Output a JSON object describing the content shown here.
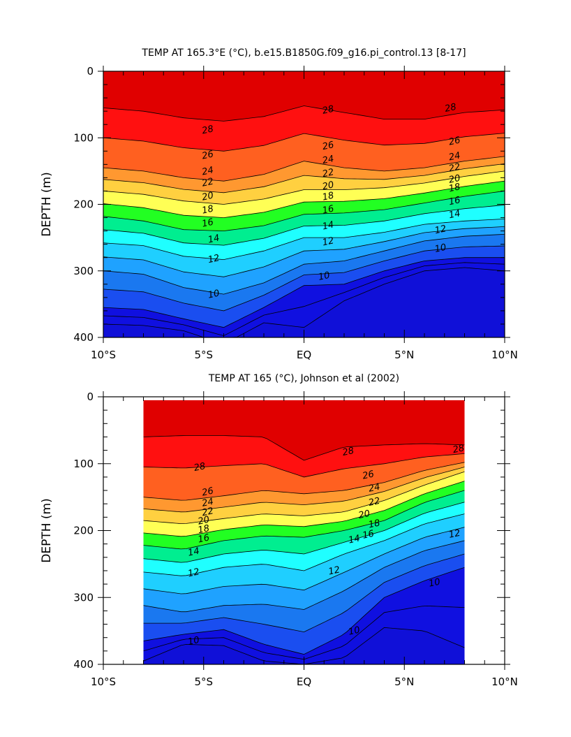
{
  "chart_data": [
    {
      "type": "heatmap",
      "title": "TEMP AT 165.3°E (°C), b.e15.B1850G.f09_g16.pi_control.13 [8-17]",
      "ylabel": "DEPTH (m)",
      "xlabel": "",
      "xlim": [
        -10,
        10
      ],
      "ylim": [
        400,
        0
      ],
      "x_ticks": [
        -10,
        -5,
        0,
        5,
        10
      ],
      "x_tick_labels": [
        "10°S",
        "5°S",
        "EQ",
        "5°N",
        "10°N"
      ],
      "y_ticks": [
        0,
        100,
        200,
        300,
        400
      ],
      "y_tick_labels": [
        "0",
        "100",
        "200",
        "300",
        "400"
      ],
      "data_extent_x": [
        -10,
        10
      ],
      "levels": [
        7,
        8,
        9,
        10,
        11,
        12,
        13,
        14,
        15,
        16,
        17,
        18,
        19,
        20,
        21,
        22,
        23,
        24,
        25,
        26,
        27,
        28,
        29
      ],
      "x": [
        -10,
        -8,
        -6,
        -4,
        -2,
        0,
        2,
        4,
        6,
        8,
        10
      ],
      "depth_profiles": [
        {
          "x": -10,
          "depths": [
            55,
            145,
            180,
            218,
            258,
            300,
            355,
            380
          ]
        },
        {
          "x": -8,
          "depths": [
            60,
            150,
            185,
            225,
            262,
            305,
            358,
            382
          ]
        },
        {
          "x": -6,
          "depths": [
            70,
            160,
            195,
            238,
            278,
            325,
            372,
            390
          ]
        },
        {
          "x": -4,
          "depths": [
            75,
            165,
            200,
            240,
            283,
            335,
            385,
            410
          ]
        },
        {
          "x": -2,
          "depths": [
            68,
            155,
            192,
            232,
            270,
            318,
            355,
            378
          ]
        },
        {
          "x": 0,
          "depths": [
            52,
            135,
            178,
            215,
            250,
            290,
            322,
            385
          ]
        },
        {
          "x": 2,
          "depths": [
            62,
            145,
            178,
            213,
            250,
            285,
            320,
            345
          ]
        },
        {
          "x": 4,
          "depths": [
            72,
            150,
            175,
            208,
            242,
            270,
            300,
            320
          ]
        },
        {
          "x": 6,
          "depths": [
            72,
            145,
            168,
            198,
            230,
            255,
            285,
            300
          ]
        },
        {
          "x": 8,
          "depths": [
            62,
            135,
            158,
            188,
            225,
            248,
            280,
            295
          ]
        },
        {
          "x": 10,
          "depths": [
            58,
            128,
            150,
            180,
            222,
            245,
            280,
            300
          ]
        }
      ],
      "contour_labels": [
        {
          "text": "28",
          "x": -4.8,
          "depth": 88
        },
        {
          "text": "28",
          "x": 1.2,
          "depth": 58
        },
        {
          "text": "28",
          "x": 7.3,
          "depth": 55
        },
        {
          "text": "26",
          "x": -4.8,
          "depth": 126
        },
        {
          "text": "26",
          "x": 1.2,
          "depth": 112
        },
        {
          "text": "26",
          "x": 7.5,
          "depth": 105
        },
        {
          "text": "24",
          "x": -4.8,
          "depth": 150
        },
        {
          "text": "24",
          "x": 1.2,
          "depth": 133
        },
        {
          "text": "24",
          "x": 7.5,
          "depth": 128
        },
        {
          "text": "22",
          "x": -4.8,
          "depth": 167
        },
        {
          "text": "22",
          "x": 1.2,
          "depth": 153
        },
        {
          "text": "22",
          "x": 7.5,
          "depth": 145
        },
        {
          "text": "20",
          "x": -4.8,
          "depth": 188
        },
        {
          "text": "20",
          "x": 1.2,
          "depth": 172
        },
        {
          "text": "20",
          "x": 7.5,
          "depth": 162
        },
        {
          "text": "18",
          "x": -4.8,
          "depth": 208
        },
        {
          "text": "18",
          "x": 1.2,
          "depth": 188
        },
        {
          "text": "18",
          "x": 7.5,
          "depth": 175
        },
        {
          "text": "16",
          "x": -4.8,
          "depth": 228
        },
        {
          "text": "16",
          "x": 1.2,
          "depth": 208
        },
        {
          "text": "16",
          "x": 7.5,
          "depth": 195
        },
        {
          "text": "14",
          "x": -4.5,
          "depth": 252
        },
        {
          "text": "14",
          "x": 1.2,
          "depth": 232
        },
        {
          "text": "14",
          "x": 7.5,
          "depth": 215
        },
        {
          "text": "12",
          "x": -4.5,
          "depth": 282
        },
        {
          "text": "12",
          "x": 1.2,
          "depth": 256
        },
        {
          "text": "12",
          "x": 6.8,
          "depth": 238
        },
        {
          "text": "10",
          "x": -4.5,
          "depth": 335
        },
        {
          "text": "10",
          "x": 1.0,
          "depth": 308
        },
        {
          "text": "10",
          "x": 6.8,
          "depth": 266
        }
      ]
    },
    {
      "type": "heatmap",
      "title": "TEMP AT 165 (°C), Johnson et al (2002)",
      "ylabel": "DEPTH (m)",
      "xlabel": "",
      "xlim": [
        -10,
        10
      ],
      "ylim": [
        400,
        0
      ],
      "x_ticks": [
        -10,
        -5,
        0,
        5,
        10
      ],
      "x_tick_labels": [
        "10°S",
        "5°S",
        "EQ",
        "5°N",
        "10°N"
      ],
      "y_ticks": [
        0,
        100,
        200,
        300,
        400
      ],
      "y_tick_labels": [
        "0",
        "100",
        "200",
        "300",
        "400"
      ],
      "data_extent_x": [
        -8,
        8
      ],
      "data_extent_depth": [
        5,
        400
      ],
      "levels": [
        7,
        8,
        9,
        10,
        11,
        12,
        13,
        14,
        15,
        16,
        17,
        18,
        19,
        20,
        21,
        22,
        23,
        24,
        25,
        26,
        27,
        28,
        29
      ],
      "x": [
        -8,
        -6,
        -4,
        -2,
        0,
        2,
        4,
        6,
        8
      ],
      "depth_profiles": [
        {
          "x": -8,
          "depths": [
            60,
            150,
            185,
            222,
            262,
            312,
            365,
            395
          ]
        },
        {
          "x": -6,
          "depths": [
            58,
            155,
            190,
            228,
            268,
            322,
            355,
            370
          ]
        },
        {
          "x": -4,
          "depths": [
            58,
            148,
            182,
            215,
            255,
            312,
            348,
            372
          ]
        },
        {
          "x": -2,
          "depths": [
            60,
            140,
            175,
            208,
            250,
            310,
            370,
            395
          ]
        },
        {
          "x": 0,
          "depths": [
            95,
            145,
            178,
            210,
            260,
            318,
            385,
            400
          ]
        },
        {
          "x": 2,
          "depths": [
            75,
            140,
            172,
            200,
            235,
            290,
            355,
            390
          ]
        },
        {
          "x": 4,
          "depths": [
            72,
            128,
            155,
            185,
            215,
            255,
            300,
            345
          ]
        },
        {
          "x": 6,
          "depths": [
            70,
            110,
            132,
            158,
            190,
            230,
            275,
            350
          ]
        },
        {
          "x": 8,
          "depths": [
            72,
            98,
            112,
            140,
            175,
            215,
            255,
            375
          ]
        }
      ],
      "contour_labels": [
        {
          "text": "28",
          "x": -5.2,
          "depth": 105
        },
        {
          "text": "28",
          "x": 2.2,
          "depth": 82
        },
        {
          "text": "28",
          "x": 7.7,
          "depth": 78
        },
        {
          "text": "26",
          "x": -4.8,
          "depth": 142
        },
        {
          "text": "26",
          "x": 3.2,
          "depth": 117
        },
        {
          "text": "24",
          "x": -4.8,
          "depth": 158
        },
        {
          "text": "24",
          "x": 3.5,
          "depth": 136
        },
        {
          "text": "22",
          "x": -4.8,
          "depth": 172
        },
        {
          "text": "22",
          "x": 3.5,
          "depth": 157
        },
        {
          "text": "20",
          "x": -5.0,
          "depth": 185
        },
        {
          "text": "20",
          "x": 3.0,
          "depth": 176
        },
        {
          "text": "18",
          "x": -5.0,
          "depth": 198
        },
        {
          "text": "18",
          "x": 3.5,
          "depth": 190
        },
        {
          "text": "16",
          "x": -5.0,
          "depth": 212
        },
        {
          "text": "16",
          "x": 3.2,
          "depth": 206
        },
        {
          "text": "14",
          "x": -5.5,
          "depth": 232
        },
        {
          "text": "14",
          "x": 2.5,
          "depth": 213
        },
        {
          "text": "12",
          "x": -5.5,
          "depth": 263
        },
        {
          "text": "12",
          "x": 1.5,
          "depth": 260
        },
        {
          "text": "12",
          "x": 7.5,
          "depth": 205
        },
        {
          "text": "10",
          "x": -5.5,
          "depth": 365
        },
        {
          "text": "10",
          "x": 2.5,
          "depth": 350
        },
        {
          "text": "10",
          "x": 6.5,
          "depth": 278
        }
      ]
    }
  ]
}
